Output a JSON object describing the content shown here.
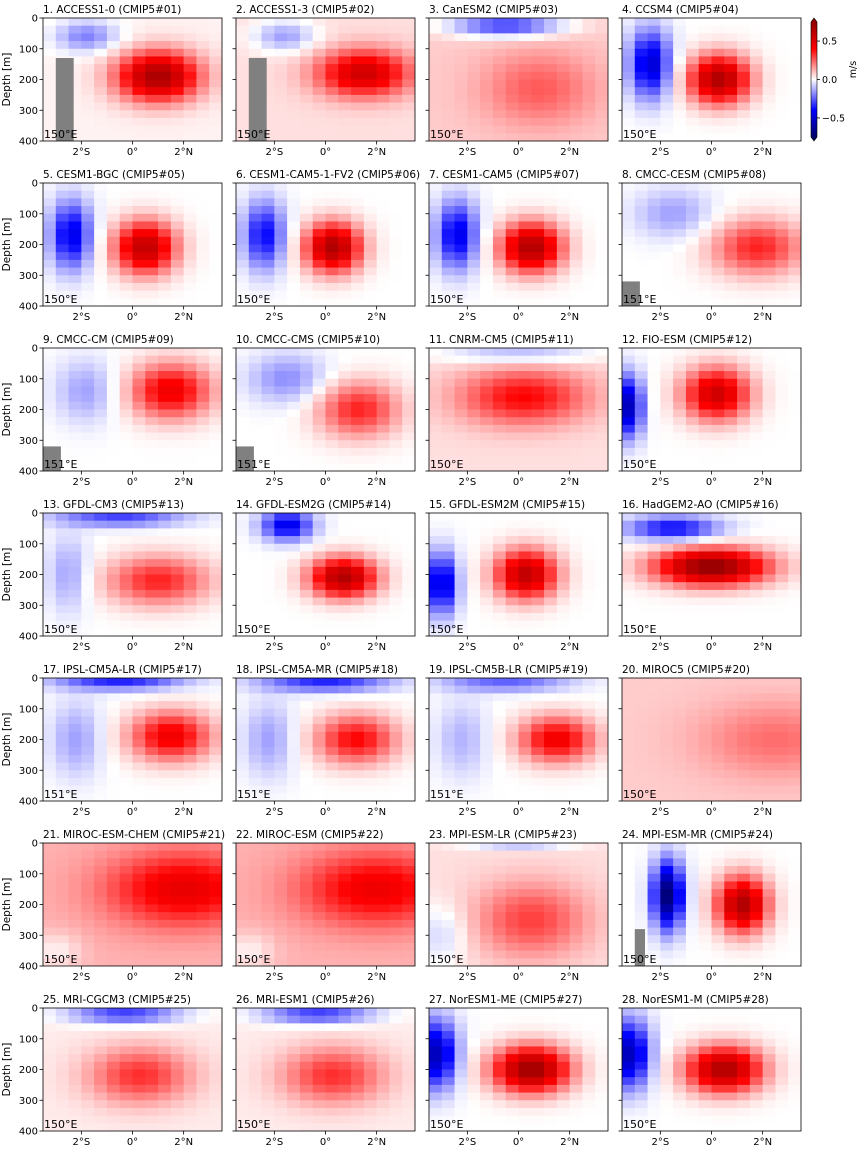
{
  "figure": {
    "ylabel": "Depth [m]",
    "colorbar": {
      "unit": "m/s",
      "ticks": [
        0.5,
        0.0,
        -0.5
      ],
      "tick_labels": [
        "0.5",
        "0.0",
        "−0.5"
      ],
      "vmin": -0.8,
      "vmax": 0.8,
      "colormap": "seismic",
      "colors": [
        "#00004c",
        "#0000ff",
        "#ffffff",
        "#ff0000",
        "#800000"
      ]
    },
    "land_color": "#808080"
  },
  "chart_data": {
    "type": "heatmap",
    "x_ticks": [
      -2,
      0,
      2
    ],
    "x_tick_labels": [
      "2°S",
      "0°",
      "2°N"
    ],
    "xlim": [
      -3.5,
      3.5
    ],
    "y_ticks": [
      0,
      100,
      200,
      300,
      400
    ],
    "ylim": [
      400,
      0
    ],
    "panels": [
      {
        "title": "1. ACCESS1-0 (CMIP5#01)",
        "lon_label": "150°E",
        "land": [
          -3,
          -2.3,
          130,
          400
        ],
        "blobs": [
          [
            1,
            190,
            1.6,
            80,
            0.65
          ],
          [
            -1.8,
            60,
            1.2,
            50,
            -0.22
          ]
        ],
        "bg": 0.02
      },
      {
        "title": "2. ACCESS1-3 (CMIP5#02)",
        "lon_label": "150°E",
        "land": [
          -3,
          -2.3,
          130,
          400
        ],
        "blobs": [
          [
            1.5,
            180,
            1.8,
            75,
            0.5
          ],
          [
            -1.6,
            60,
            1.2,
            50,
            -0.2
          ]
        ],
        "bg": 0.05
      },
      {
        "title": "3. CanESM2 (CMIP5#03)",
        "lon_label": "150°E",
        "land": null,
        "blobs": [
          [
            -0.5,
            25,
            2.2,
            35,
            -0.4
          ],
          [
            0.8,
            230,
            2.2,
            120,
            0.18
          ]
        ],
        "bg": 0.08
      },
      {
        "title": "4. CCSM4 (CMIP5#04)",
        "lon_label": "150°E",
        "land": null,
        "blobs": [
          [
            0.3,
            200,
            1.2,
            80,
            0.65
          ],
          [
            -2.4,
            150,
            0.8,
            110,
            -0.5
          ]
        ],
        "bg": 0.0
      },
      {
        "title": "5. CESM1-BGC (CMIP5#05)",
        "lon_label": "150°E",
        "land": null,
        "blobs": [
          [
            0.5,
            210,
            1.2,
            85,
            0.6
          ],
          [
            -2.4,
            170,
            0.8,
            110,
            -0.45
          ]
        ],
        "bg": 0.0
      },
      {
        "title": "6. CESM1-CAM5-1-FV2 (CMIP5#06)",
        "lon_label": "150°E",
        "land": null,
        "blobs": [
          [
            0.3,
            210,
            1.1,
            80,
            0.65
          ],
          [
            -2.4,
            170,
            0.8,
            110,
            -0.4
          ]
        ],
        "bg": 0.0
      },
      {
        "title": "7. CESM1-CAM5 (CMIP5#07)",
        "lon_label": "150°E",
        "land": null,
        "blobs": [
          [
            0.5,
            210,
            1.2,
            80,
            0.65
          ],
          [
            -2.4,
            170,
            0.8,
            110,
            -0.45
          ]
        ],
        "bg": 0.0
      },
      {
        "title": "8. CMCC-CESM (CMIP5#08)",
        "lon_label": "151°E",
        "land": [
          -3.5,
          -2.8,
          320,
          400
        ],
        "blobs": [
          [
            1.8,
            210,
            1.8,
            90,
            0.35
          ],
          [
            -1.5,
            100,
            1.5,
            80,
            -0.15
          ]
        ],
        "bg": 0.0
      },
      {
        "title": "9. CMCC-CM (CMIP5#09)",
        "lon_label": "151°E",
        "land": [
          -3.5,
          -2.8,
          320,
          400
        ],
        "blobs": [
          [
            1.5,
            140,
            1.6,
            90,
            0.45
          ],
          [
            -1.8,
            140,
            1.2,
            100,
            -0.15
          ]
        ],
        "bg": 0.0
      },
      {
        "title": "10. CMCC-CMS (CMIP5#10)",
        "lon_label": "151°E",
        "land": [
          -3.5,
          -2.8,
          320,
          400
        ],
        "blobs": [
          [
            1.3,
            200,
            1.6,
            90,
            0.35
          ],
          [
            -1.5,
            100,
            1.5,
            80,
            -0.18
          ]
        ],
        "bg": 0.0
      },
      {
        "title": "11. CNRM-CM5 (CMIP5#11)",
        "lon_label": "150°E",
        "land": null,
        "blobs": [
          [
            0.2,
            160,
            2.5,
            90,
            0.35
          ],
          [
            0,
            20,
            3,
            30,
            -0.18
          ]
        ],
        "bg": 0.05
      },
      {
        "title": "12. FIO-ESM (CMIP5#12)",
        "lon_label": "150°E",
        "land": null,
        "blobs": [
          [
            0.2,
            150,
            1.3,
            85,
            0.55
          ],
          [
            -3.2,
            190,
            0.5,
            100,
            -0.55
          ]
        ],
        "bg": 0.0
      },
      {
        "title": "13. GFDL-CM3 (CMIP5#13)",
        "lon_label": "150°E",
        "land": null,
        "blobs": [
          [
            1,
            220,
            2,
            80,
            0.35
          ],
          [
            -0.5,
            15,
            2.5,
            30,
            -0.3
          ],
          [
            -2.5,
            200,
            0.8,
            120,
            -0.15
          ]
        ],
        "bg": 0.0
      },
      {
        "title": "14. GFDL-ESM2G (CMIP5#14)",
        "lon_label": "150°E",
        "land": null,
        "blobs": [
          [
            0.7,
            210,
            1.3,
            65,
            0.65
          ],
          [
            -1.5,
            40,
            1,
            50,
            -0.45
          ]
        ],
        "bg": 0.0
      },
      {
        "title": "15. GFDL-ESM2M (CMIP5#15)",
        "lon_label": "150°E",
        "land": null,
        "blobs": [
          [
            0.3,
            200,
            1.2,
            80,
            0.6
          ],
          [
            -3,
            230,
            0.6,
            100,
            -0.5
          ]
        ],
        "bg": 0.0
      },
      {
        "title": "16. HadGEM2-AO (CMIP5#16)",
        "lon_label": "150°E",
        "land": null,
        "blobs": [
          [
            0,
            175,
            2.2,
            60,
            0.75
          ],
          [
            -1.5,
            50,
            1.8,
            40,
            -0.4
          ]
        ],
        "bg": 0.0
      },
      {
        "title": "17. IPSL-CM5A-LR (CMIP5#17)",
        "lon_label": "151°E",
        "land": null,
        "blobs": [
          [
            1.5,
            190,
            1.6,
            80,
            0.45
          ],
          [
            -0.5,
            10,
            2.5,
            30,
            -0.35
          ],
          [
            -2.2,
            200,
            1,
            120,
            -0.15
          ]
        ],
        "bg": 0.0
      },
      {
        "title": "18. IPSL-CM5A-MR (CMIP5#18)",
        "lon_label": "151°E",
        "land": null,
        "blobs": [
          [
            1.2,
            200,
            1.6,
            80,
            0.4
          ],
          [
            0,
            15,
            2.5,
            30,
            -0.35
          ],
          [
            -2.2,
            200,
            1,
            120,
            -0.15
          ]
        ],
        "bg": 0.0
      },
      {
        "title": "19. IPSL-CM5B-LR (CMIP5#19)",
        "lon_label": "151°E",
        "land": null,
        "blobs": [
          [
            1.5,
            200,
            1.5,
            75,
            0.45
          ],
          [
            -0.5,
            15,
            2.5,
            30,
            -0.25
          ],
          [
            -2.2,
            200,
            1,
            120,
            -0.12
          ]
        ],
        "bg": 0.0
      },
      {
        "title": "20. MIROC5 (CMIP5#20)",
        "lon_label": "150°E",
        "land": null,
        "blobs": [
          [
            2.5,
            200,
            3,
            120,
            0.15
          ]
        ],
        "bg": 0.08
      },
      {
        "title": "21. MIROC-ESM-CHEM (CMIP5#21)",
        "lon_label": "150°E",
        "land": null,
        "blobs": [
          [
            2,
            150,
            3,
            120,
            0.35
          ],
          [
            -3,
            350,
            1,
            60,
            -0.1
          ]
        ],
        "bg": 0.12
      },
      {
        "title": "22. MIROC-ESM (CMIP5#22)",
        "lon_label": "150°E",
        "land": null,
        "blobs": [
          [
            2,
            150,
            3,
            120,
            0.33
          ],
          [
            -3,
            350,
            1,
            60,
            -0.1
          ]
        ],
        "bg": 0.12
      },
      {
        "title": "23. MPI-ESM-LR (CMIP5#23)",
        "lon_label": "150°E",
        "land": null,
        "blobs": [
          [
            0.5,
            250,
            2.2,
            120,
            0.25
          ],
          [
            0,
            0,
            2,
            20,
            -0.2
          ],
          [
            -3,
            300,
            1,
            100,
            -0.12
          ]
        ],
        "bg": 0.05
      },
      {
        "title": "24. MPI-ESM-MR (CMIP5#24)",
        "lon_label": "150°E",
        "land": [
          -3,
          -2.6,
          280,
          400
        ],
        "blobs": [
          [
            1.2,
            200,
            1,
            90,
            0.65
          ],
          [
            -1.7,
            170,
            0.6,
            110,
            -0.7
          ]
        ],
        "bg": 0.0
      },
      {
        "title": "25. MRI-CGCM3 (CMIP5#25)",
        "lon_label": "150°E",
        "land": null,
        "blobs": [
          [
            0.3,
            220,
            2,
            90,
            0.3
          ],
          [
            -0.3,
            20,
            2.2,
            30,
            -0.35
          ]
        ],
        "bg": 0.03
      },
      {
        "title": "26. MRI-ESM1 (CMIP5#26)",
        "lon_label": "150°E",
        "land": null,
        "blobs": [
          [
            0.3,
            220,
            2,
            90,
            0.3
          ],
          [
            -0.3,
            20,
            2.2,
            30,
            -0.35
          ]
        ],
        "bg": 0.03
      },
      {
        "title": "27. NorESM1-ME (CMIP5#27)",
        "lon_label": "150°E",
        "land": null,
        "blobs": [
          [
            0.5,
            200,
            1.5,
            75,
            0.7
          ],
          [
            -3.2,
            150,
            0.8,
            110,
            -0.55
          ]
        ],
        "bg": 0.0
      },
      {
        "title": "28. NorESM1-M (CMIP5#28)",
        "lon_label": "150°E",
        "land": null,
        "blobs": [
          [
            0.5,
            200,
            1.5,
            75,
            0.65
          ],
          [
            -3.2,
            150,
            0.8,
            110,
            -0.55
          ]
        ],
        "bg": 0.0
      }
    ]
  }
}
